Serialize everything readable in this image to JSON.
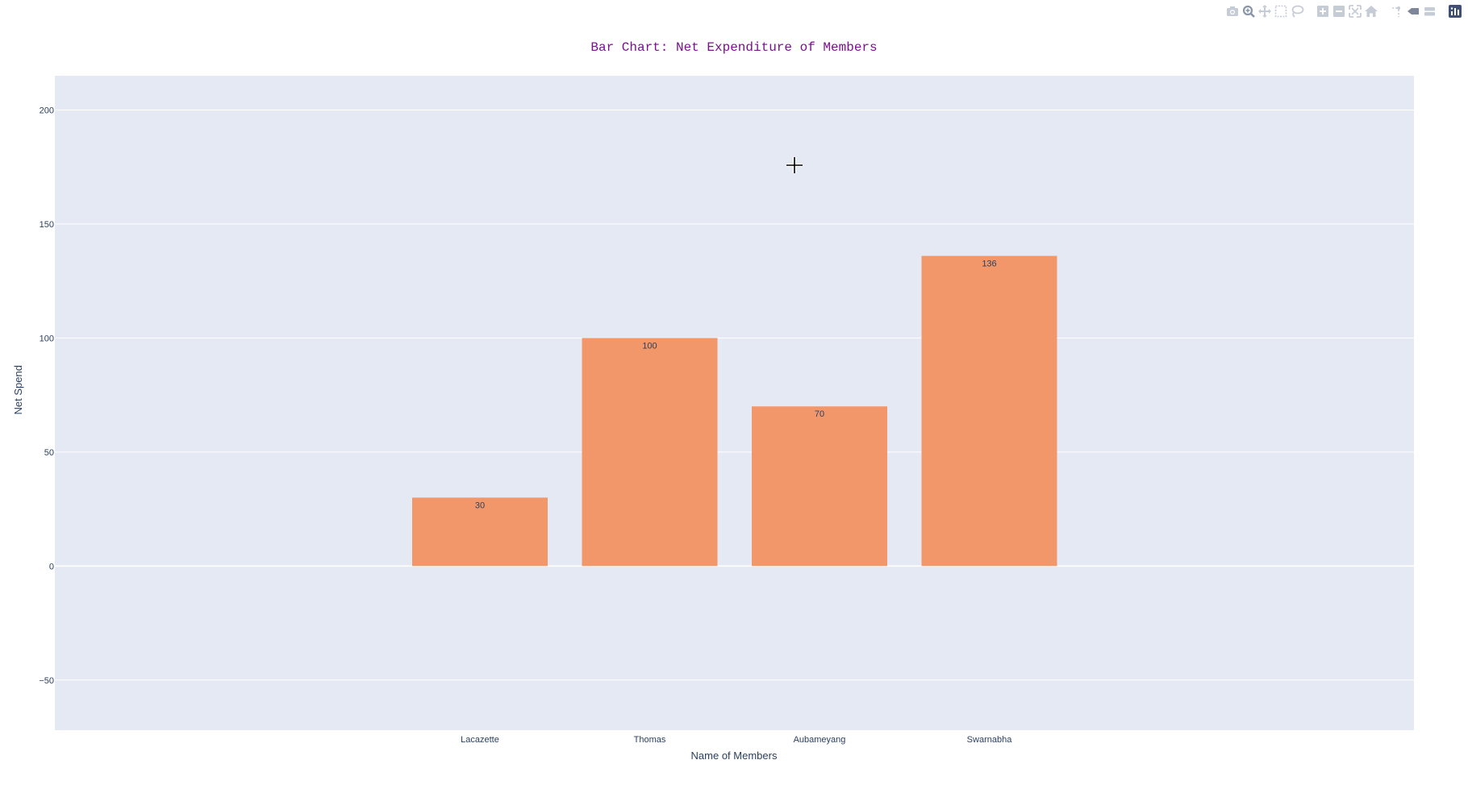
{
  "modebar": {
    "buttons": [
      {
        "name": "camera-icon",
        "group": 0
      },
      {
        "name": "zoom-icon",
        "group": 0
      },
      {
        "name": "pan-icon",
        "group": 0
      },
      {
        "name": "box-select-icon",
        "group": 0
      },
      {
        "name": "lasso-select-icon",
        "group": 0
      },
      {
        "name": "zoom-in-icon",
        "group": 1
      },
      {
        "name": "zoom-out-icon",
        "group": 1
      },
      {
        "name": "autoscale-icon",
        "group": 1
      },
      {
        "name": "reset-axes-icon",
        "group": 1
      },
      {
        "name": "spike-lines-icon",
        "group": 2
      },
      {
        "name": "hover-closest-icon",
        "group": 2
      },
      {
        "name": "hover-compare-icon",
        "group": 2
      },
      {
        "name": "plotly-logo-icon",
        "group": 3
      }
    ]
  },
  "colors": {
    "bar": "#f2976a",
    "plot_bg": "#e5e9f4",
    "grid": "#ffffff",
    "title": "#7b0f8f",
    "axis_text": "#2a3f5f",
    "modebar_icon": "#c6ccd6",
    "modebar_active": "#8a96a8",
    "logo": "#3f4f75"
  },
  "chart_data": {
    "type": "bar",
    "title": "Bar Chart: Net Expenditure of Members",
    "xlabel": "Name of Members",
    "ylabel": "Net Spend",
    "categories": [
      "Lacazette",
      "Thomas",
      "Aubameyang",
      "Swarnabha"
    ],
    "values": [
      30,
      100,
      70,
      136
    ],
    "data_labels": [
      "30",
      "100",
      "70",
      "136"
    ],
    "ylim": [
      -72,
      215
    ],
    "yticks": [
      -50,
      0,
      50,
      100,
      150,
      200
    ],
    "ytick_labels": [
      "−50",
      "0",
      "50",
      "100",
      "150",
      "200"
    ],
    "grid": true,
    "legend": "none"
  }
}
